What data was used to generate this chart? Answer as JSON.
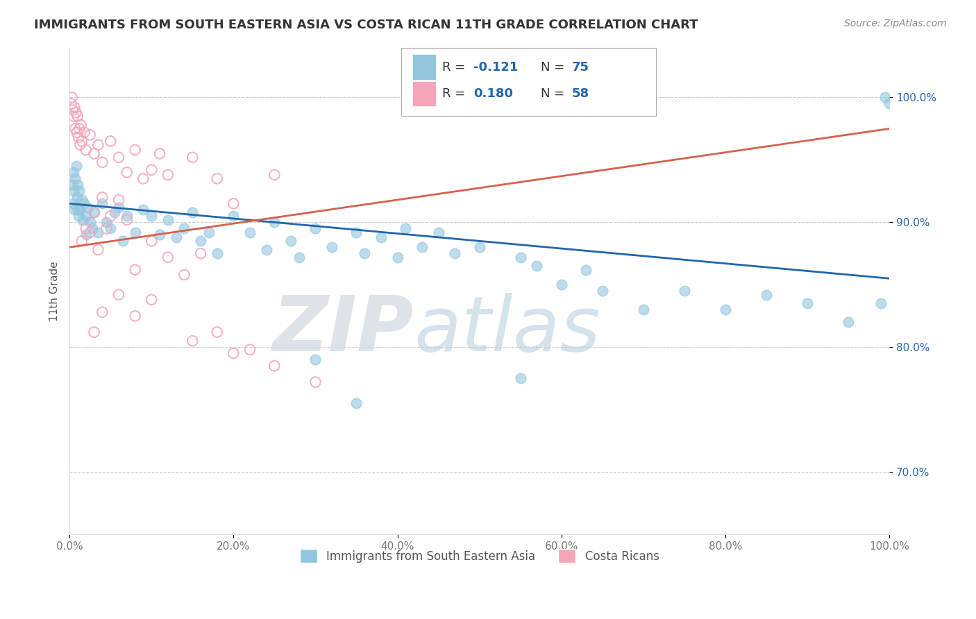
{
  "title": "IMMIGRANTS FROM SOUTH EASTERN ASIA VS COSTA RICAN 11TH GRADE CORRELATION CHART",
  "source": "Source: ZipAtlas.com",
  "ylabel": "11th Grade",
  "legend_label1": "Immigrants from South Eastern Asia",
  "legend_label2": "Costa Ricans",
  "R1": -0.121,
  "N1": 75,
  "R2": 0.18,
  "N2": 58,
  "color_blue": "#92c5de",
  "color_pink": "#f4a6b8",
  "color_blue_line": "#2166ac",
  "color_pink_line": "#d6604d",
  "xlim": [
    0.0,
    100.0
  ],
  "ylim": [
    65.0,
    104.0
  ],
  "yticks": [
    70.0,
    80.0,
    90.0,
    100.0
  ],
  "ytick_labels": [
    "70.0%",
    "80.0%",
    "90.0%",
    "100.0%"
  ],
  "xticks": [
    0.0,
    20.0,
    40.0,
    60.0,
    80.0,
    100.0
  ],
  "xtick_labels": [
    "0.0%",
    "20.0%",
    "40.0%",
    "60.0%",
    "80.0%",
    "100.0%"
  ],
  "watermark_zip": "ZIP",
  "watermark_atlas": "atlas",
  "blue_x": [
    0.3,
    0.4,
    0.5,
    0.5,
    0.6,
    0.7,
    0.8,
    0.9,
    1.0,
    1.0,
    1.1,
    1.2,
    1.3,
    1.5,
    1.6,
    1.8,
    2.0,
    2.0,
    2.2,
    2.5,
    2.8,
    3.0,
    3.5,
    4.0,
    4.5,
    5.0,
    5.5,
    6.0,
    6.5,
    7.0,
    8.0,
    9.0,
    10.0,
    11.0,
    12.0,
    13.0,
    14.0,
    15.0,
    16.0,
    17.0,
    18.0,
    20.0,
    22.0,
    24.0,
    25.0,
    27.0,
    28.0,
    30.0,
    32.0,
    35.0,
    36.0,
    38.0,
    40.0,
    41.0,
    43.0,
    45.0,
    47.0,
    50.0,
    55.0,
    57.0,
    60.0,
    63.0,
    65.0,
    70.0,
    75.0,
    80.0,
    85.0,
    90.0,
    95.0,
    99.0,
    99.5,
    100.0,
    30.0,
    35.0,
    55.0
  ],
  "blue_y": [
    93.0,
    91.5,
    94.0,
    92.5,
    91.0,
    93.5,
    94.5,
    92.0,
    93.0,
    91.0,
    90.5,
    92.5,
    91.0,
    91.8,
    90.2,
    91.5,
    90.5,
    89.0,
    91.2,
    90.0,
    89.5,
    90.8,
    89.2,
    91.5,
    90.0,
    89.5,
    90.8,
    91.2,
    88.5,
    90.5,
    89.2,
    91.0,
    90.5,
    89.0,
    90.2,
    88.8,
    89.5,
    90.8,
    88.5,
    89.2,
    87.5,
    90.5,
    89.2,
    87.8,
    90.0,
    88.5,
    87.2,
    89.5,
    88.0,
    89.2,
    87.5,
    88.8,
    87.2,
    89.5,
    88.0,
    89.2,
    87.5,
    88.0,
    87.2,
    86.5,
    85.0,
    86.2,
    84.5,
    83.0,
    84.5,
    83.0,
    84.2,
    83.5,
    82.0,
    83.5,
    100.0,
    99.5,
    79.0,
    75.5,
    77.5
  ],
  "pink_x": [
    0.2,
    0.3,
    0.4,
    0.5,
    0.6,
    0.7,
    0.8,
    0.9,
    1.0,
    1.1,
    1.2,
    1.3,
    1.4,
    1.5,
    1.8,
    2.0,
    2.5,
    3.0,
    3.5,
    4.0,
    5.0,
    6.0,
    7.0,
    8.0,
    9.0,
    10.0,
    11.0,
    12.0,
    15.0,
    18.0,
    20.0,
    25.0,
    4.0,
    5.0,
    6.0,
    7.0,
    2.0,
    3.0,
    1.5,
    2.5,
    3.5,
    4.5,
    8.0,
    10.0,
    12.0,
    14.0,
    16.0,
    20.0,
    6.0,
    8.0,
    10.0,
    3.0,
    4.0,
    15.0,
    18.0,
    22.0,
    25.0,
    30.0
  ],
  "pink_y": [
    99.5,
    100.0,
    99.0,
    98.5,
    99.2,
    97.5,
    98.8,
    97.2,
    98.5,
    96.8,
    97.5,
    96.2,
    97.8,
    96.5,
    97.2,
    95.8,
    97.0,
    95.5,
    96.2,
    94.8,
    96.5,
    95.2,
    94.0,
    95.8,
    93.5,
    94.2,
    95.5,
    93.8,
    95.2,
    93.5,
    91.5,
    93.8,
    92.0,
    90.5,
    91.8,
    90.2,
    89.5,
    90.8,
    88.5,
    89.2,
    87.8,
    89.5,
    86.2,
    88.5,
    87.2,
    85.8,
    87.5,
    79.5,
    84.2,
    82.5,
    83.8,
    81.2,
    82.8,
    80.5,
    81.2,
    79.8,
    78.5,
    77.2
  ]
}
